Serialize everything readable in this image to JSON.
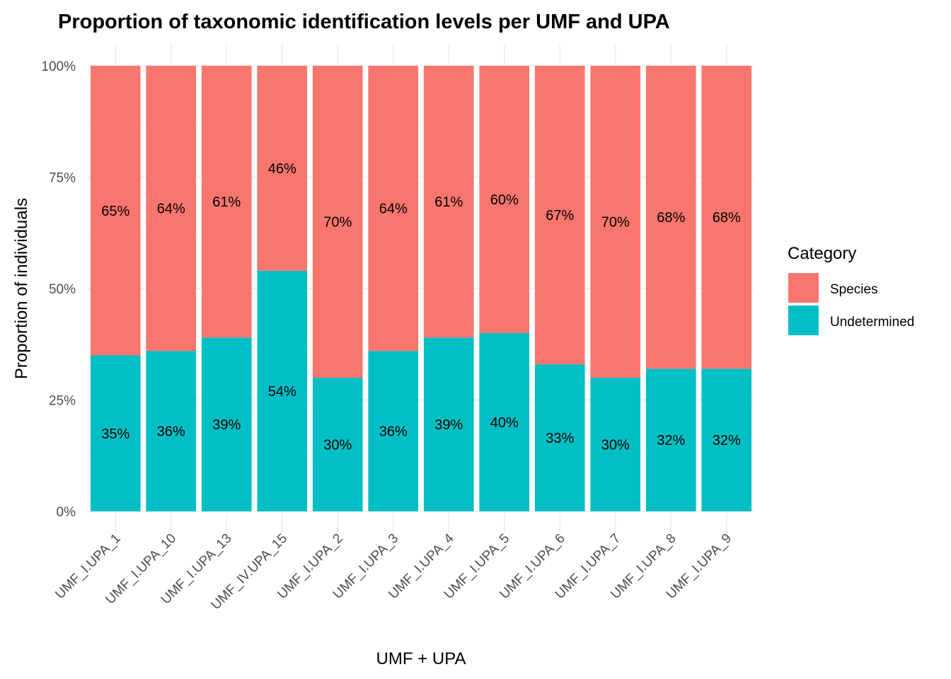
{
  "chart_data": {
    "type": "bar",
    "stacked": true,
    "title": "Proportion of taxonomic identification levels per UMF and UPA",
    "xlabel": "UMF + UPA",
    "ylabel": "Proportion of individuals",
    "ylim": [
      0,
      1
    ],
    "yticks": [
      {
        "value": 0,
        "label": "0%"
      },
      {
        "value": 0.25,
        "label": "25%"
      },
      {
        "value": 0.5,
        "label": "50%"
      },
      {
        "value": 0.75,
        "label": "75%"
      },
      {
        "value": 1,
        "label": "100%"
      }
    ],
    "grid": true,
    "categories": [
      "UMF_I.UPA_1",
      "UMF_I.UPA_10",
      "UMF_I.UPA_13",
      "UMF_IV.UPA_15",
      "UMF_I.UPA_2",
      "UMF_I.UPA_3",
      "UMF_I.UPA_4",
      "UMF_I.UPA_5",
      "UMF_I.UPA_6",
      "UMF_I.UPA_7",
      "UMF_I.UPA_8",
      "UMF_I.UPA_9"
    ],
    "series": [
      {
        "name": "Undetermined",
        "color": "#00BFC4",
        "values": [
          35,
          36,
          39,
          54,
          30,
          36,
          39,
          40,
          33,
          30,
          32,
          32
        ],
        "labels": [
          "35%",
          "36%",
          "39%",
          "54%",
          "30%",
          "36%",
          "39%",
          "40%",
          "33%",
          "30%",
          "32%",
          "32%"
        ]
      },
      {
        "name": "Species",
        "color": "#F8766D",
        "values": [
          65,
          64,
          61,
          46,
          70,
          64,
          61,
          60,
          67,
          70,
          68,
          68
        ],
        "labels": [
          "65%",
          "64%",
          "61%",
          "46%",
          "70%",
          "64%",
          "61%",
          "60%",
          "67%",
          "70%",
          "68%",
          "68%"
        ]
      }
    ],
    "legend": {
      "title": "Category",
      "position": "right",
      "entries": [
        {
          "label": "Species",
          "color": "#F8766D"
        },
        {
          "label": "Undetermined",
          "color": "#00BFC4"
        }
      ]
    }
  }
}
